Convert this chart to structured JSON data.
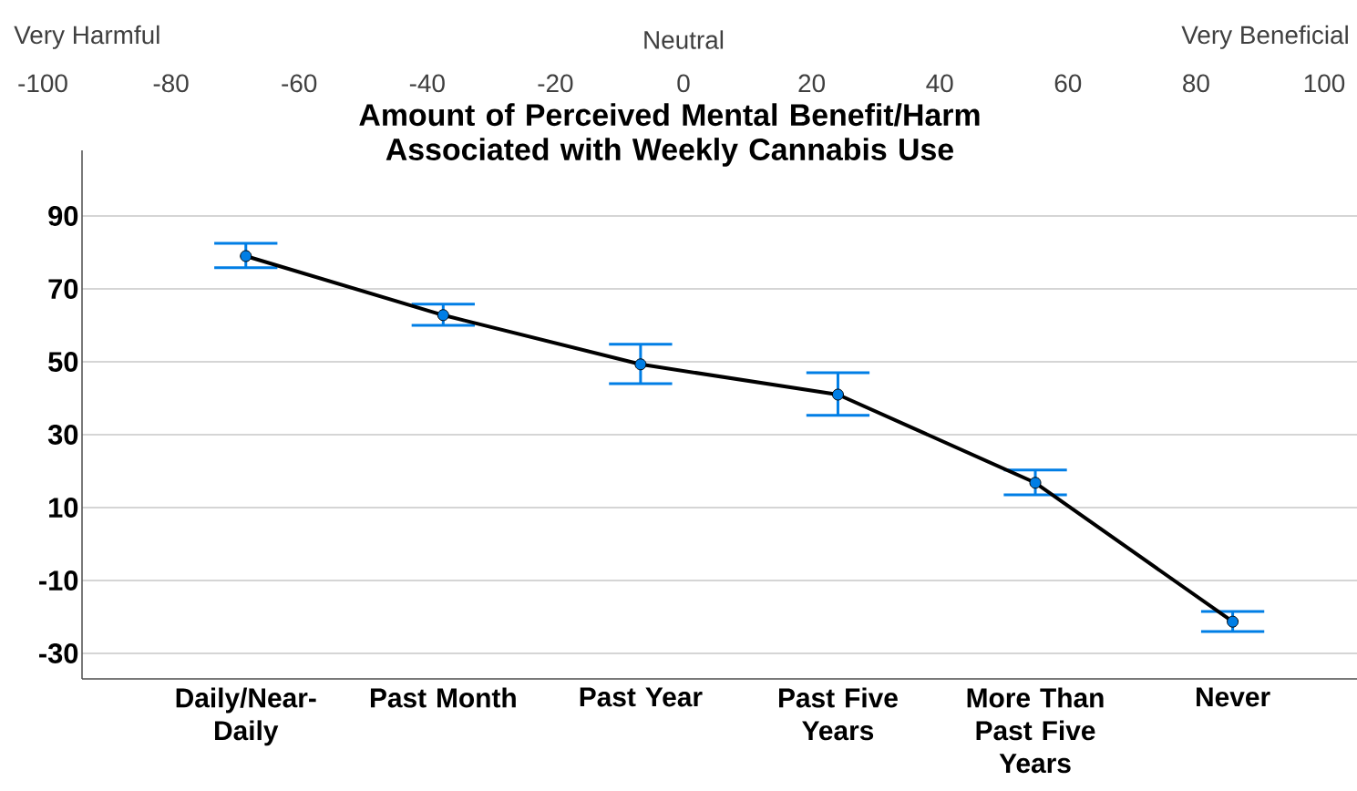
{
  "chart_data": {
    "type": "line",
    "title": "Amount of Perceived Mental Benefit/Harm Associated with Weekly Cannabis Use",
    "categories": [
      "Daily/Near-Daily",
      "Past Month",
      "Past Year",
      "Past Five Years",
      "More Than Past Five Years",
      "Never"
    ],
    "series": [
      {
        "color": "#000000",
        "values": [
          79,
          62.8,
          49.3,
          41,
          16.8,
          -21.3
        ],
        "errors": [
          [
            75.8,
            82.5
          ],
          [
            60,
            65.8
          ],
          [
            44,
            54.8
          ],
          [
            35.3,
            47
          ],
          [
            13.5,
            20.3
          ],
          [
            -24,
            -18.5
          ]
        ]
      }
    ],
    "ylim": [
      -37,
      108
    ],
    "yticks": [
      -30,
      -10,
      10,
      30,
      50,
      70,
      90
    ],
    "x2lim": [
      -100,
      100
    ],
    "x2ticks": [
      -100,
      -80,
      -60,
      -40,
      -20,
      0,
      20,
      40,
      60,
      80,
      100
    ],
    "annotations": [
      "Very Harmful",
      "Neutral",
      "Very Beneficial"
    ],
    "grid": "y",
    "marker": "circle",
    "line_style": "solid"
  }
}
